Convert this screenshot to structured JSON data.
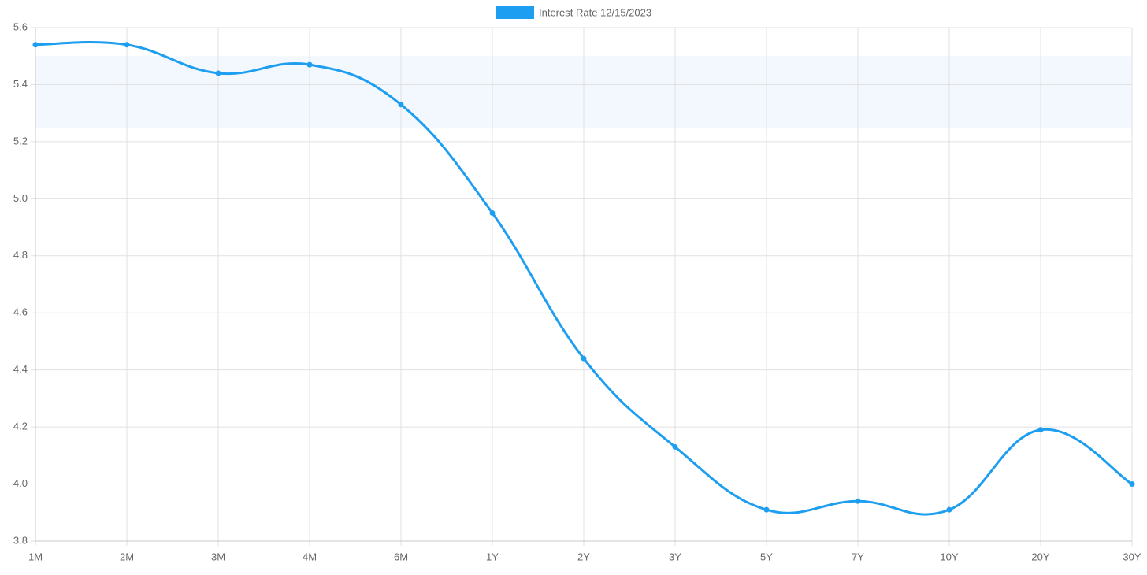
{
  "chart_data": {
    "type": "line",
    "categories": [
      "1M",
      "2M",
      "3M",
      "4M",
      "6M",
      "1Y",
      "2Y",
      "3Y",
      "5Y",
      "7Y",
      "10Y",
      "20Y",
      "30Y"
    ],
    "series": [
      {
        "name": "Interest Rate 12/15/2023",
        "color": "#1e9ef0",
        "values": [
          5.54,
          5.54,
          5.44,
          5.47,
          5.33,
          4.95,
          4.44,
          4.13,
          3.91,
          3.94,
          3.91,
          4.19,
          4.0
        ]
      }
    ],
    "highlight_band": [
      5.25,
      5.5
    ],
    "ylim": [
      3.8,
      5.6
    ],
    "yticks": [
      3.8,
      {
        "value": 4,
        "label": "4.0"
      },
      4.2,
      4.4,
      4.6,
      4.8,
      {
        "value": 5,
        "label": "5.0"
      },
      5.2,
      5.4,
      5.6
    ],
    "grid": true,
    "legend": "top"
  }
}
